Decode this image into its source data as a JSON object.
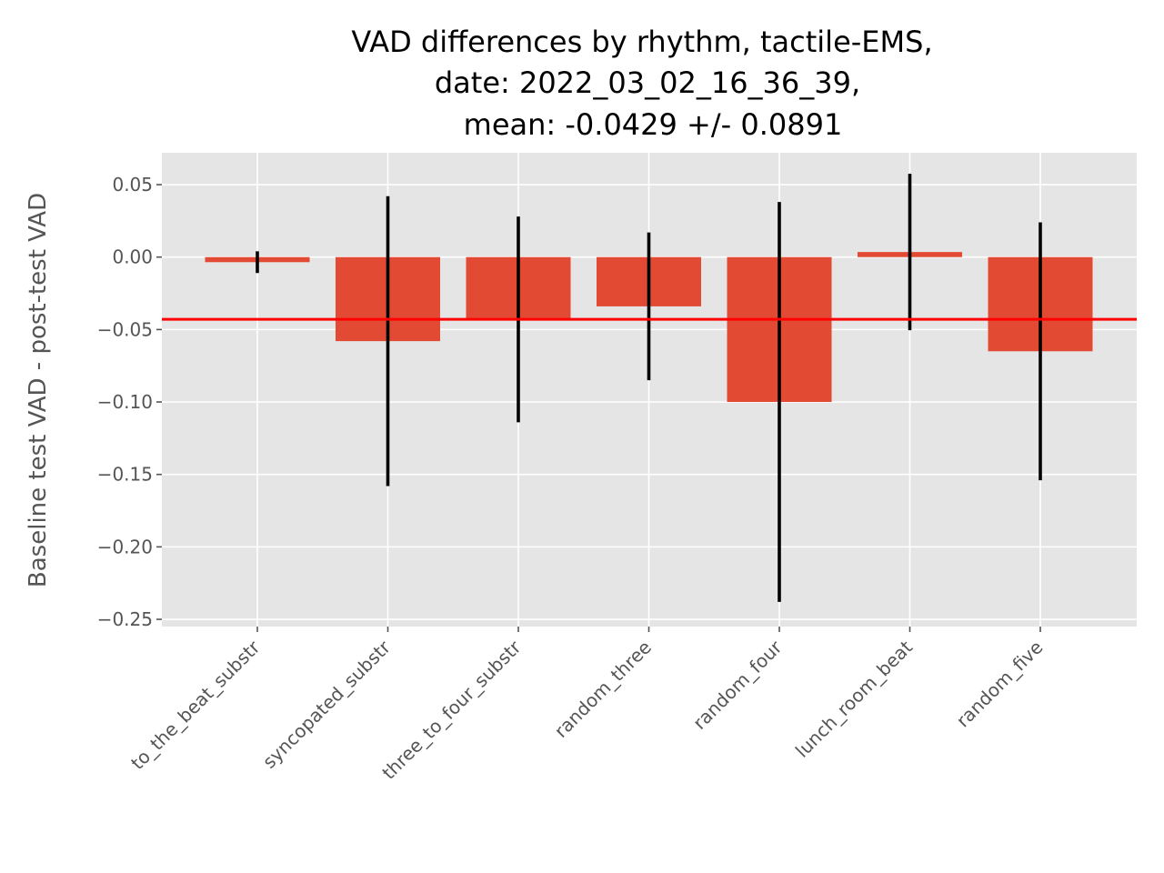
{
  "chart_data": {
    "type": "bar",
    "title_lines": [
      "VAD differences by rhythm, tactile-EMS,",
      "date: 2022_03_02_16_36_39,",
      "mean: -0.0429 +/- 0.0891"
    ],
    "xlabel": "",
    "ylabel": "Baseline test VAD - post-test VAD",
    "categories": [
      "to_the_beat_substr",
      "syncopated_substr",
      "three_to_four_substr",
      "random_three",
      "random_four",
      "lunch_room_beat",
      "random_five"
    ],
    "values": [
      -0.0035,
      -0.058,
      -0.043,
      -0.034,
      -0.1,
      0.0035,
      -0.065
    ],
    "error_bars": [
      0.0075,
      0.1,
      0.071,
      0.051,
      0.138,
      0.054,
      0.089
    ],
    "mean_line": -0.0429,
    "ylim": [
      -0.255,
      0.072
    ],
    "yticks": [
      0.05,
      0.0,
      -0.05,
      -0.1,
      -0.15,
      -0.2,
      -0.25
    ],
    "ytick_labels": [
      "0.05",
      "0.00",
      "−0.05",
      "−0.10",
      "−0.15",
      "−0.20",
      "−0.25"
    ],
    "grid": true,
    "colors": {
      "bar": "#E24A33",
      "error_bar": "#000000",
      "mean_line": "#FF0000",
      "plot_background": "#E5E5E5",
      "grid": "#FFFFFF"
    }
  }
}
